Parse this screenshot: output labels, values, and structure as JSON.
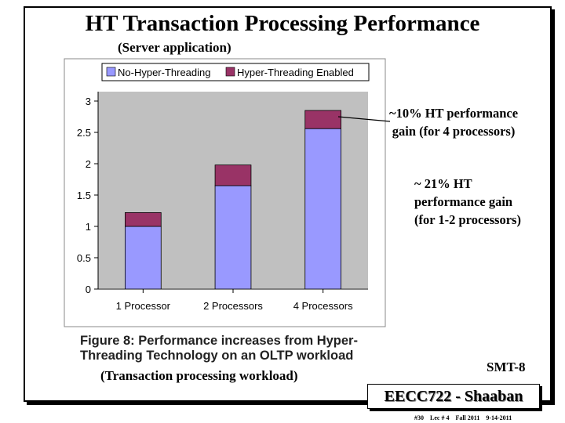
{
  "slide": {
    "title": "HT Transaction Processing Performance",
    "subtitle": "(Server application)",
    "note_10pct": [
      "~10% HT performance",
      "gain (for 4 processors)"
    ],
    "note_21pct": [
      "~ 21% HT",
      "performance gain",
      "(for 1-2 processors)"
    ],
    "figure_caption": [
      "Figure 8:  Performance increases from Hyper-",
      "Threading Technology on an OLTP workload"
    ],
    "workload_label": "(Transaction processing workload)",
    "section_label": "SMT-8",
    "course_label": "EECC722 - Shaaban",
    "footer": [
      "#30",
      "Lec # 4",
      "Fall 2011",
      "9-14-2011"
    ]
  },
  "colors": {
    "no_ht": "#9999ff",
    "ht": "#993366",
    "plot_bg": "#c0c0c0",
    "panel_bg": "#ffffff"
  },
  "chart_data": {
    "type": "bar",
    "stacked": true,
    "categories": [
      "1 Processor",
      "2 Processors",
      "4 Processors"
    ],
    "series": [
      {
        "name": "No-Hyper-Threading",
        "values": [
          1.0,
          1.65,
          2.56
        ]
      },
      {
        "name": "Hyper-Threading Enabled",
        "values": [
          0.22,
          0.33,
          0.29
        ]
      }
    ],
    "y_ticks": [
      "0",
      "0.5",
      "1",
      "1.5",
      "2",
      "2.5",
      "3"
    ],
    "ylim": [
      0,
      3
    ],
    "grid": false,
    "legend": "top"
  }
}
